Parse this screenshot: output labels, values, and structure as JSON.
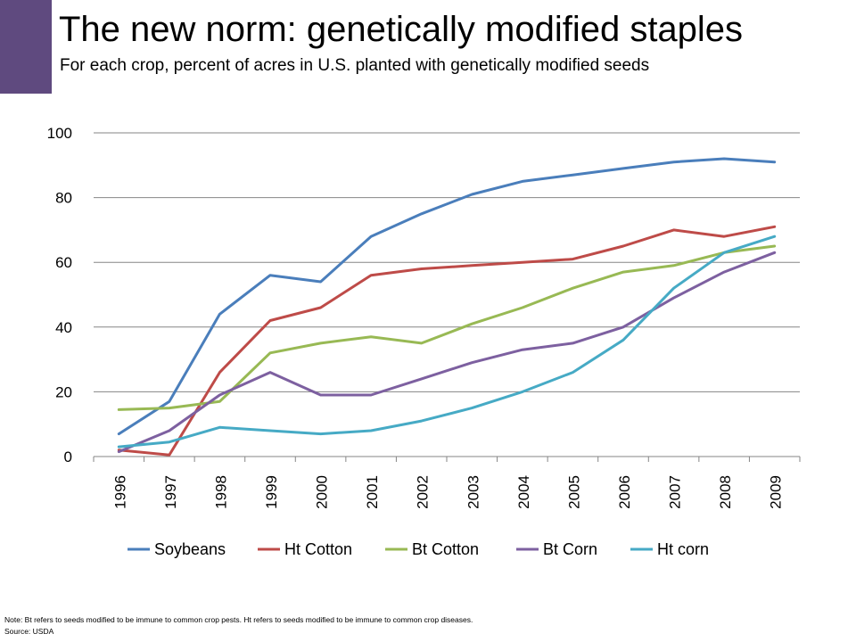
{
  "slide": {
    "title": "The new norm:  genetically modified staples",
    "subtitle": "For each crop, percent of acres in U.S. planted with genetically modified seeds",
    "note": "Note:  Bt refers to seeds modified to be immune to common crop pests. Ht refers to seeds modified to be immune to common crop diseases.",
    "source": "Source:  USDA",
    "accent_color": "#5f4a7f"
  },
  "chart_data": {
    "type": "line",
    "title": "",
    "xlabel": "",
    "ylabel": "",
    "x": [
      "1996",
      "1997",
      "1998",
      "1999",
      "2000",
      "2001",
      "2002",
      "2003",
      "2004",
      "2005",
      "2006",
      "2007",
      "2008",
      "2009"
    ],
    "ylim": [
      0,
      100
    ],
    "yticks": [
      0,
      20,
      40,
      60,
      80,
      100
    ],
    "grid": true,
    "legend_position": "bottom",
    "series": [
      {
        "name": "Soybeans",
        "color": "#4a7ebb",
        "values": [
          7,
          17,
          44,
          56,
          54,
          68,
          75,
          81,
          85,
          87,
          89,
          91,
          92,
          91
        ]
      },
      {
        "name": "Ht Cotton",
        "color": "#be4b48",
        "values": [
          2,
          0.5,
          26,
          42,
          46,
          56,
          58,
          59,
          60,
          61,
          65,
          70,
          68,
          71
        ]
      },
      {
        "name": "Bt Cotton",
        "color": "#98b954",
        "values": [
          14.5,
          15,
          17,
          32,
          35,
          37,
          35,
          41,
          46,
          52,
          57,
          59,
          63,
          65
        ]
      },
      {
        "name": "Bt Corn",
        "color": "#7d60a0",
        "values": [
          1.5,
          8,
          19,
          26,
          19,
          19,
          24,
          29,
          33,
          35,
          40,
          49,
          57,
          63
        ]
      },
      {
        "name": "Ht corn",
        "color": "#46aac5",
        "values": [
          3,
          4.5,
          9,
          8,
          7,
          8,
          11,
          15,
          20,
          26,
          36,
          52,
          63,
          68
        ]
      }
    ]
  }
}
